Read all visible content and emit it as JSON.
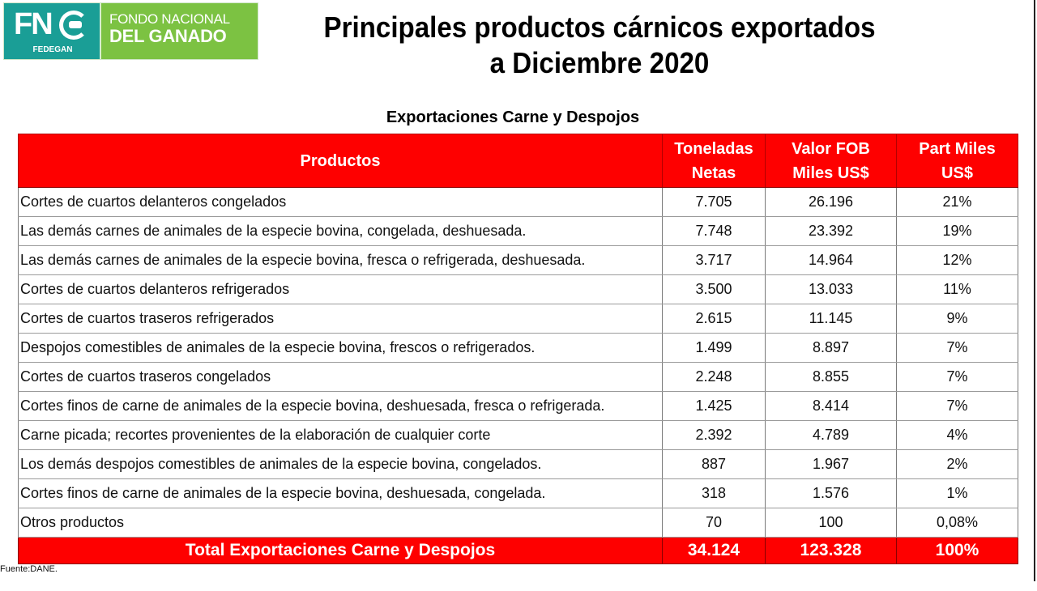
{
  "logo": {
    "mark": "FN",
    "sub": "FEDEGAN",
    "line1": "FONDO NACIONAL",
    "line2": "DEL GANADO",
    "colors": {
      "teal": "#1a9e96",
      "green": "#7cc242"
    }
  },
  "title": {
    "line1": "Principales productos cárnicos exportados",
    "line2": "a Diciembre 2020"
  },
  "subtitle": "Exportaciones Carne y Despojos",
  "table": {
    "headers": {
      "productos": "Productos",
      "toneladas_l1": "Toneladas",
      "toneladas_l2": "Netas",
      "valor_l1": "Valor FOB",
      "valor_l2": "Miles US$",
      "part_l1": "Part Miles",
      "part_l2": "US$"
    },
    "rows": [
      {
        "producto": "Cortes de cuartos delanteros congelados",
        "toneladas": "7.705",
        "valor": "26.196",
        "part": "21%"
      },
      {
        "producto": "Las demás carnes de animales de la especie bovina, congelada, deshuesada.",
        "toneladas": "7.748",
        "valor": "23.392",
        "part": "19%"
      },
      {
        "producto": "Las demás carnes de animales de la especie bovina, fresca o refrigerada, deshuesada.",
        "toneladas": "3.717",
        "valor": "14.964",
        "part": "12%"
      },
      {
        "producto": "Cortes de cuartos delanteros refrigerados",
        "toneladas": "3.500",
        "valor": "13.033",
        "part": "11%"
      },
      {
        "producto": "Cortes de cuartos traseros refrigerados",
        "toneladas": "2.615",
        "valor": "11.145",
        "part": "9%"
      },
      {
        "producto": "Despojos comestibles de animales de la especie bovina, frescos o refrigerados.",
        "toneladas": "1.499",
        "valor": "8.897",
        "part": "7%"
      },
      {
        "producto": "Cortes de cuartos traseros congelados",
        "toneladas": "2.248",
        "valor": "8.855",
        "part": "7%"
      },
      {
        "producto": "Cortes finos de carne de animales de la especie bovina, deshuesada, fresca o refrigerada.",
        "toneladas": "1.425",
        "valor": "8.414",
        "part": "7%"
      },
      {
        "producto": "Carne picada; recortes provenientes de la elaboración de cualquier corte",
        "toneladas": "2.392",
        "valor": "4.789",
        "part": "4%"
      },
      {
        "producto": "Los demás despojos comestibles de animales de la especie bovina, congelados.",
        "toneladas": "887",
        "valor": "1.967",
        "part": "2%"
      },
      {
        "producto": "Cortes finos de carne de animales de la especie bovina, deshuesada, congelada.",
        "toneladas": "318",
        "valor": "1.576",
        "part": "1%"
      },
      {
        "producto": "Otros productos",
        "toneladas": "70",
        "valor": "100",
        "part": "0,08%"
      }
    ],
    "total": {
      "label": "Total Exportaciones Carne y Despojos",
      "toneladas": "34.124",
      "valor": "123.328",
      "part": "100%"
    },
    "colors": {
      "header_bg": "#fe0000",
      "header_text": "#ffffff"
    }
  },
  "source": "Fuente:DANE."
}
